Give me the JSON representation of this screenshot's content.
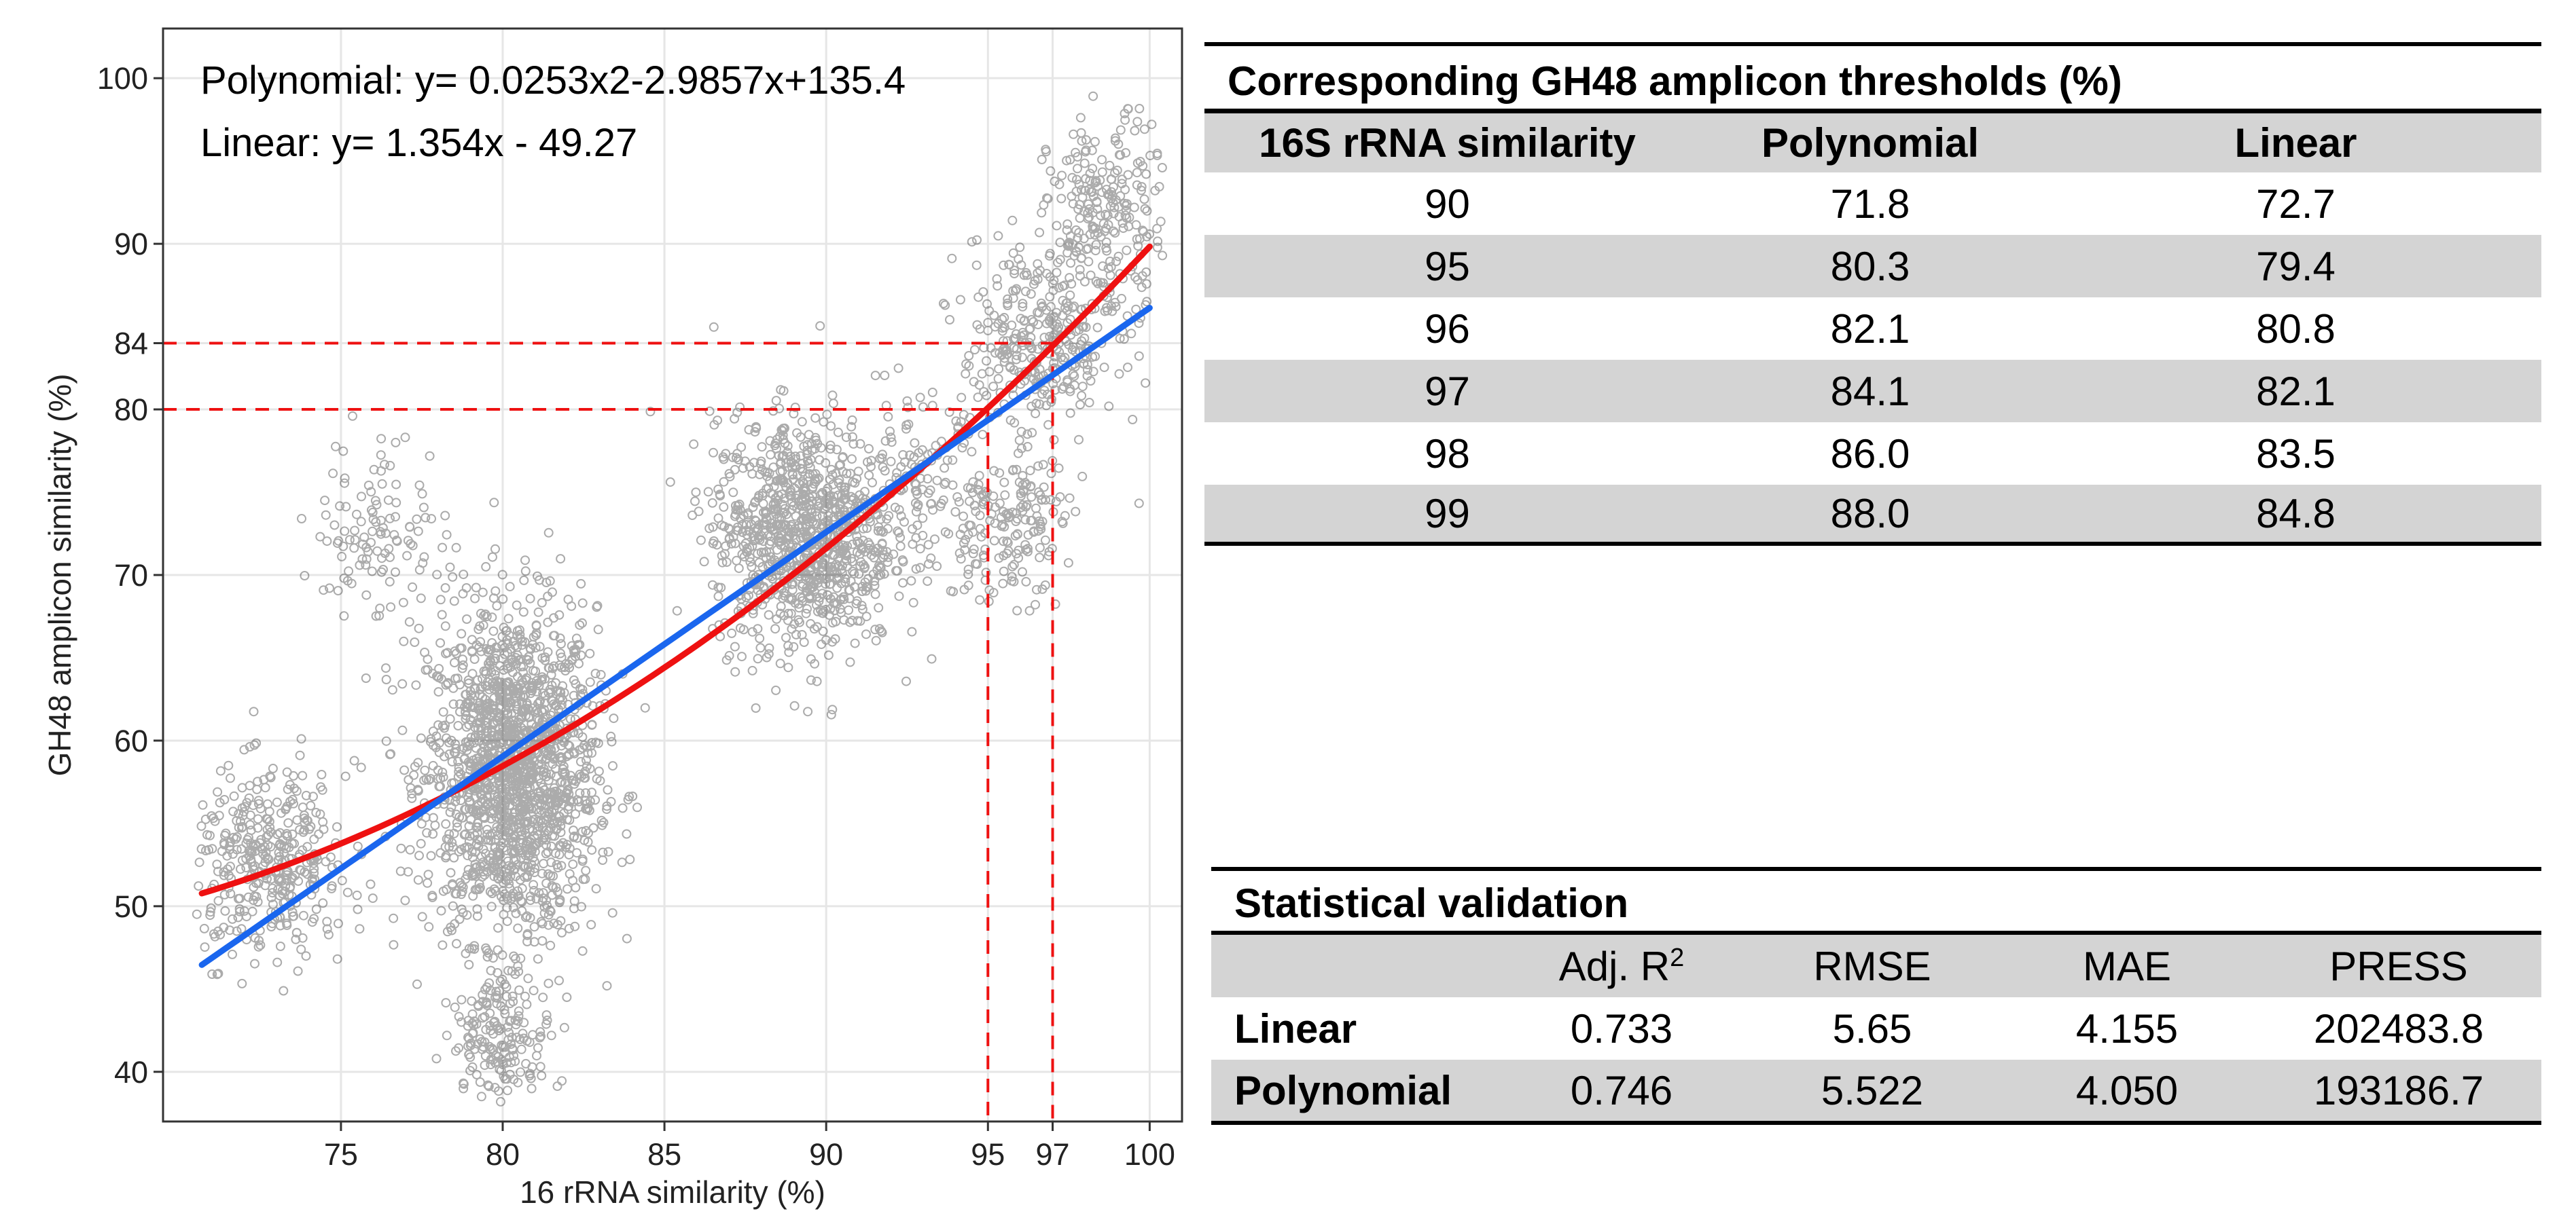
{
  "chart_data": {
    "type": "scatter",
    "title": "",
    "xlabel": "16 rRNA similarity (%)",
    "ylabel": "GH48 amplicon similarity (%)",
    "xlim": [
      69.5,
      101
    ],
    "ylim": [
      37,
      103
    ],
    "x_ticks": [
      75,
      80,
      85,
      90,
      95,
      97,
      100
    ],
    "y_ticks": [
      40,
      50,
      60,
      70,
      80,
      84,
      90,
      100
    ],
    "grid": true,
    "equations": {
      "polynomial": "Polynomial: y= 0.0253x2-2.9857x+135.4",
      "linear": "Linear: y= 1.354x - 49.27"
    },
    "series": [
      {
        "name": "Polynomial",
        "kind": "fit",
        "color": "#ee1111",
        "coefficients": [
          0.0253,
          -2.9857,
          135.4
        ],
        "x_range": [
          70.7,
          100
        ]
      },
      {
        "name": "Linear",
        "kind": "fit",
        "color": "#1a66ee",
        "coefficients": [
          0,
          1.354,
          -49.27
        ],
        "x_range": [
          70.7,
          100
        ]
      }
    ],
    "threshold_lines": [
      {
        "x": 95,
        "y": 80,
        "color": "#ee1111",
        "style": "dashed"
      },
      {
        "x": 97,
        "y": 84,
        "color": "#ee1111",
        "style": "dashed"
      }
    ],
    "point_clusters": [
      {
        "cx": 80.3,
        "cy": 58,
        "sx": 1.3,
        "sy": 5.0,
        "n": 1700
      },
      {
        "cx": 89.3,
        "cy": 72.5,
        "sx": 1.4,
        "sy": 3.5,
        "n": 1000
      },
      {
        "cx": 72.8,
        "cy": 52.5,
        "sx": 1.2,
        "sy": 2.8,
        "n": 380
      },
      {
        "cx": 96.6,
        "cy": 84,
        "sx": 1.2,
        "sy": 3.2,
        "n": 340
      },
      {
        "cx": 98.7,
        "cy": 91.5,
        "sx": 0.9,
        "sy": 3.0,
        "n": 240
      },
      {
        "cx": 80.0,
        "cy": 42,
        "sx": 0.8,
        "sy": 1.8,
        "n": 170
      },
      {
        "cx": 76.2,
        "cy": 72.5,
        "sx": 1.0,
        "sy": 3.0,
        "n": 120
      },
      {
        "cx": 95.5,
        "cy": 73,
        "sx": 1.0,
        "sy": 2.2,
        "n": 170
      },
      {
        "cx": 92.8,
        "cy": 75.5,
        "sx": 1.0,
        "sy": 2.5,
        "n": 110
      }
    ]
  },
  "thresholds_table": {
    "title": "Corresponding GH48 amplicon thresholds (%)",
    "headers": [
      "16S rRNA similarity",
      "Polynomial",
      "Linear"
    ],
    "rows": [
      [
        "90",
        "71.8",
        "72.7"
      ],
      [
        "95",
        "80.3",
        "79.4"
      ],
      [
        "96",
        "82.1",
        "80.8"
      ],
      [
        "97",
        "84.1",
        "82.1"
      ],
      [
        "98",
        "86.0",
        "83.5"
      ],
      [
        "99",
        "88.0",
        "84.8"
      ]
    ]
  },
  "validation_table": {
    "title": "Statistical validation",
    "headers": [
      "",
      "Adj. R",
      "RMSE",
      "MAE",
      "PRESS"
    ],
    "adj_r_superscript": "2",
    "rows": [
      [
        "Linear",
        "0.733",
        "5.65",
        "4.155",
        "202483.8"
      ],
      [
        "Polynomial",
        "0.746",
        "5.522",
        "4.050",
        "193186.7"
      ]
    ]
  }
}
